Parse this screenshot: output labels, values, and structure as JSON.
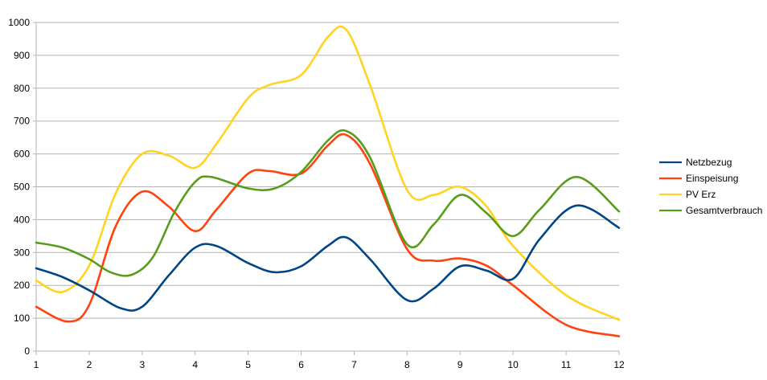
{
  "chart_data": {
    "type": "line",
    "title": "",
    "xlabel": "",
    "ylabel": "",
    "x": [
      1,
      2,
      3,
      4,
      5,
      6,
      7,
      8,
      9,
      10,
      11,
      12
    ],
    "xlim": [
      1,
      12
    ],
    "ylim": [
      0,
      1000
    ],
    "y_ticks": [
      0,
      100,
      200,
      300,
      400,
      500,
      600,
      700,
      800,
      900,
      1000
    ],
    "x_ticks": [
      1,
      2,
      3,
      4,
      5,
      6,
      7,
      8,
      9,
      10,
      11,
      12
    ],
    "grid": "horizontal",
    "legend_position": "right",
    "smooth": true,
    "series": [
      {
        "name": "Netzbezug",
        "color": "#004586",
        "x": [
          1,
          1.5,
          2,
          2.6,
          3,
          3.5,
          4,
          4.4,
          5,
          5.5,
          6,
          6.5,
          6.85,
          7.3,
          8,
          8.5,
          9,
          9.5,
          10,
          10.5,
          11.2,
          12
        ],
        "y": [
          252,
          225,
          185,
          130,
          135,
          230,
          315,
          320,
          268,
          240,
          258,
          320,
          346,
          280,
          155,
          190,
          258,
          245,
          220,
          340,
          443,
          375
        ]
      },
      {
        "name": "Einspeisung",
        "color": "#ff420e",
        "x": [
          1,
          1.6,
          2,
          2.5,
          3,
          3.5,
          4,
          4.4,
          5,
          5.4,
          6,
          6.5,
          6.85,
          7.3,
          8,
          8.5,
          9,
          9.5,
          10,
          11,
          12
        ],
        "y": [
          135,
          90,
          140,
          380,
          485,
          440,
          365,
          430,
          540,
          548,
          540,
          625,
          658,
          570,
          310,
          275,
          282,
          260,
          200,
          80,
          45
        ]
      },
      {
        "name": "PV Erz",
        "color": "#ffd320",
        "x": [
          1,
          1.5,
          2,
          2.5,
          3,
          3.5,
          4,
          4.4,
          5,
          5.4,
          6,
          6.5,
          6.85,
          7.3,
          8,
          8.5,
          9,
          9.5,
          10,
          11,
          12
        ],
        "y": [
          215,
          180,
          260,
          480,
          600,
          595,
          558,
          630,
          770,
          810,
          840,
          955,
          978,
          810,
          490,
          475,
          500,
          440,
          320,
          170,
          95
        ]
      },
      {
        "name": "Gesamtverbrauch",
        "color": "#579d1c",
        "x": [
          1,
          1.5,
          2,
          2.4,
          2.8,
          3.2,
          3.6,
          4,
          4.3,
          5,
          5.5,
          6,
          6.5,
          6.85,
          7.3,
          8,
          8.5,
          9,
          9.5,
          10,
          10.5,
          11.2,
          12
        ],
        "y": [
          330,
          315,
          280,
          240,
          232,
          285,
          420,
          515,
          530,
          495,
          495,
          545,
          640,
          670,
          590,
          325,
          385,
          475,
          420,
          350,
          430,
          530,
          425
        ]
      }
    ]
  }
}
